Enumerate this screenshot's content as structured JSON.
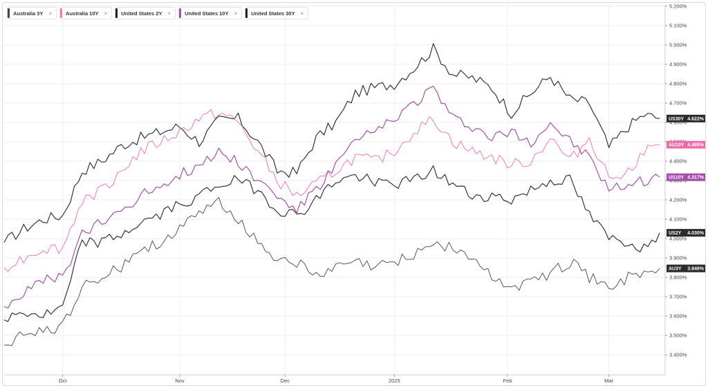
{
  "legend": [
    {
      "name": "Australia 3Y",
      "color": "#444444",
      "close": "×"
    },
    {
      "name": "Australia 10Y",
      "color": "#f07ab3",
      "close": "×"
    },
    {
      "name": "United States 2Y",
      "color": "#222222",
      "close": "×"
    },
    {
      "name": "United States 10Y",
      "color": "#a450a8",
      "close": "×"
    },
    {
      "name": "United States 30Y",
      "color": "#222222",
      "close": "×"
    }
  ],
  "chart_data": {
    "type": "line",
    "ylim": [
      3.3,
      5.2
    ],
    "y_ticks": [
      3.4,
      3.5,
      3.6,
      3.7,
      3.8,
      3.9,
      4.0,
      4.1,
      4.2,
      4.3,
      4.4,
      4.5,
      4.6,
      4.7,
      4.8,
      4.9,
      5.0,
      5.1,
      5.2
    ],
    "y_tick_labels": [
      "3.400%",
      "3.500%",
      "3.600%",
      "3.700%",
      "3.800%",
      "3.900%",
      "4.000%",
      "4.100%",
      "4.200%",
      "4.300%",
      "4.400%",
      "4.500%",
      "4.600%",
      "4.700%",
      "4.800%",
      "4.900%",
      "5.000%",
      "5.100%",
      "5.200%"
    ],
    "x_tick_labels": [
      "Oct",
      "Nov",
      "Dec",
      "2025",
      "Feb",
      "Mar"
    ],
    "x_tick_points": [
      15,
      45,
      72,
      100,
      129,
      155
    ],
    "n_points": 169,
    "grid": true,
    "series": [
      {
        "name": "United States 30Y",
        "tag": "US30Y",
        "last_label": "4.622%",
        "color": "#333333",
        "width": 1.2,
        "values": [
          [
            0,
            3.98
          ],
          [
            5,
            4.05
          ],
          [
            10,
            4.1
          ],
          [
            15,
            4.12
          ],
          [
            20,
            4.35
          ],
          [
            25,
            4.4
          ],
          [
            30,
            4.48
          ],
          [
            35,
            4.52
          ],
          [
            40,
            4.55
          ],
          [
            45,
            4.58
          ],
          [
            50,
            4.5
          ],
          [
            55,
            4.61
          ],
          [
            60,
            4.62
          ],
          [
            65,
            4.5
          ],
          [
            70,
            4.35
          ],
          [
            75,
            4.34
          ],
          [
            80,
            4.52
          ],
          [
            85,
            4.6
          ],
          [
            90,
            4.75
          ],
          [
            95,
            4.78
          ],
          [
            100,
            4.8
          ],
          [
            105,
            4.88
          ],
          [
            110,
            4.98
          ],
          [
            115,
            4.85
          ],
          [
            120,
            4.83
          ],
          [
            125,
            4.78
          ],
          [
            130,
            4.65
          ],
          [
            135,
            4.75
          ],
          [
            140,
            4.84
          ],
          [
            145,
            4.72
          ],
          [
            150,
            4.7
          ],
          [
            155,
            4.47
          ],
          [
            160,
            4.58
          ],
          [
            164,
            4.64
          ],
          [
            168,
            4.62
          ]
        ]
      },
      {
        "name": "Australia 10Y",
        "tag": "AU10Y",
        "last_label": "4.485%",
        "color": "#f07ab3",
        "width": 1.0,
        "values": [
          [
            0,
            3.85
          ],
          [
            5,
            3.9
          ],
          [
            10,
            3.95
          ],
          [
            15,
            3.95
          ],
          [
            20,
            4.2
          ],
          [
            25,
            4.25
          ],
          [
            30,
            4.35
          ],
          [
            35,
            4.45
          ],
          [
            40,
            4.5
          ],
          [
            45,
            4.55
          ],
          [
            50,
            4.62
          ],
          [
            55,
            4.65
          ],
          [
            60,
            4.6
          ],
          [
            65,
            4.45
          ],
          [
            70,
            4.3
          ],
          [
            75,
            4.22
          ],
          [
            80,
            4.28
          ],
          [
            85,
            4.35
          ],
          [
            90,
            4.42
          ],
          [
            95,
            4.4
          ],
          [
            100,
            4.45
          ],
          [
            105,
            4.55
          ],
          [
            110,
            4.62
          ],
          [
            115,
            4.5
          ],
          [
            120,
            4.45
          ],
          [
            125,
            4.42
          ],
          [
            130,
            4.38
          ],
          [
            135,
            4.4
          ],
          [
            140,
            4.52
          ],
          [
            145,
            4.4
          ],
          [
            150,
            4.52
          ],
          [
            155,
            4.32
          ],
          [
            160,
            4.35
          ],
          [
            164,
            4.45
          ],
          [
            168,
            4.485
          ]
        ]
      },
      {
        "name": "United States 10Y",
        "tag": "US10Y",
        "last_label": "4.317%",
        "color": "#a450a8",
        "width": 1.2,
        "values": [
          [
            0,
            3.65
          ],
          [
            5,
            3.72
          ],
          [
            10,
            3.78
          ],
          [
            15,
            3.8
          ],
          [
            20,
            4.02
          ],
          [
            25,
            4.08
          ],
          [
            30,
            4.15
          ],
          [
            35,
            4.22
          ],
          [
            40,
            4.28
          ],
          [
            45,
            4.33
          ],
          [
            50,
            4.38
          ],
          [
            55,
            4.45
          ],
          [
            60,
            4.4
          ],
          [
            65,
            4.3
          ],
          [
            70,
            4.22
          ],
          [
            75,
            4.15
          ],
          [
            80,
            4.25
          ],
          [
            85,
            4.38
          ],
          [
            90,
            4.5
          ],
          [
            95,
            4.55
          ],
          [
            100,
            4.62
          ],
          [
            105,
            4.7
          ],
          [
            110,
            4.78
          ],
          [
            115,
            4.62
          ],
          [
            120,
            4.58
          ],
          [
            125,
            4.52
          ],
          [
            130,
            4.55
          ],
          [
            135,
            4.5
          ],
          [
            140,
            4.6
          ],
          [
            145,
            4.5
          ],
          [
            150,
            4.42
          ],
          [
            155,
            4.25
          ],
          [
            160,
            4.28
          ],
          [
            164,
            4.3
          ],
          [
            168,
            4.317
          ]
        ]
      },
      {
        "name": "United States 2Y",
        "tag": "US2Y",
        "last_label": "4.030%",
        "color": "#333333",
        "width": 1.2,
        "values": [
          [
            0,
            3.58
          ],
          [
            5,
            3.62
          ],
          [
            10,
            3.6
          ],
          [
            15,
            3.64
          ],
          [
            20,
            3.98
          ],
          [
            25,
            3.98
          ],
          [
            30,
            4.02
          ],
          [
            35,
            4.08
          ],
          [
            40,
            4.12
          ],
          [
            45,
            4.18
          ],
          [
            50,
            4.22
          ],
          [
            55,
            4.28
          ],
          [
            60,
            4.3
          ],
          [
            65,
            4.25
          ],
          [
            70,
            4.15
          ],
          [
            75,
            4.12
          ],
          [
            80,
            4.2
          ],
          [
            85,
            4.3
          ],
          [
            90,
            4.32
          ],
          [
            95,
            4.3
          ],
          [
            100,
            4.28
          ],
          [
            105,
            4.3
          ],
          [
            110,
            4.35
          ],
          [
            115,
            4.28
          ],
          [
            120,
            4.22
          ],
          [
            125,
            4.22
          ],
          [
            130,
            4.2
          ],
          [
            135,
            4.25
          ],
          [
            140,
            4.3
          ],
          [
            145,
            4.3
          ],
          [
            150,
            4.12
          ],
          [
            155,
            4.0
          ],
          [
            160,
            3.98
          ],
          [
            164,
            3.95
          ],
          [
            168,
            4.03
          ]
        ]
      },
      {
        "name": "Australia 3Y",
        "tag": "AU3Y",
        "last_label": "3.846%",
        "color": "#555555",
        "width": 1.0,
        "values": [
          [
            0,
            3.45
          ],
          [
            5,
            3.5
          ],
          [
            10,
            3.52
          ],
          [
            15,
            3.55
          ],
          [
            20,
            3.75
          ],
          [
            25,
            3.8
          ],
          [
            30,
            3.85
          ],
          [
            35,
            3.95
          ],
          [
            40,
            3.98
          ],
          [
            45,
            4.05
          ],
          [
            50,
            4.12
          ],
          [
            55,
            4.2
          ],
          [
            60,
            4.1
          ],
          [
            65,
            3.98
          ],
          [
            70,
            3.9
          ],
          [
            75,
            3.88
          ],
          [
            80,
            3.8
          ],
          [
            85,
            3.85
          ],
          [
            90,
            3.88
          ],
          [
            95,
            3.85
          ],
          [
            100,
            3.88
          ],
          [
            105,
            3.92
          ],
          [
            110,
            3.98
          ],
          [
            115,
            3.95
          ],
          [
            120,
            3.9
          ],
          [
            125,
            3.8
          ],
          [
            130,
            3.75
          ],
          [
            135,
            3.78
          ],
          [
            140,
            3.82
          ],
          [
            145,
            3.88
          ],
          [
            150,
            3.8
          ],
          [
            155,
            3.75
          ],
          [
            160,
            3.8
          ],
          [
            164,
            3.82
          ],
          [
            168,
            3.846
          ]
        ]
      }
    ]
  }
}
